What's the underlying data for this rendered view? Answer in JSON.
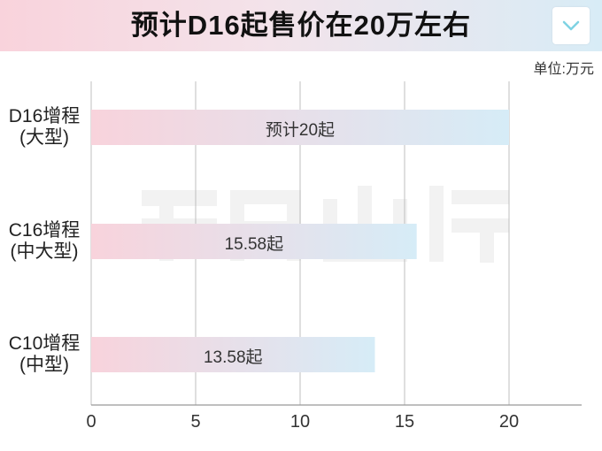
{
  "header": {
    "title": "预计D16起售价在20万左右",
    "chevron_icon": "chevron-down-icon"
  },
  "colors": {
    "bar_start": "#f8d3dc",
    "bar_end": "#d6ecf7",
    "grid": "#bfbfbf",
    "axis": "#999999"
  },
  "chart_data": {
    "type": "bar",
    "orientation": "horizontal",
    "title": "预计D16起售价在20万左右",
    "unit_label": "单位:万元",
    "categories": [
      [
        "D16增程",
        "(大型)"
      ],
      [
        "C16增程",
        "(中大型)"
      ],
      [
        "C10增程",
        "(中型)"
      ]
    ],
    "values": [
      20,
      15.58,
      13.58
    ],
    "data_labels": [
      "预计20起",
      "15.58起",
      "13.58起"
    ],
    "xlim": [
      0,
      23
    ],
    "xticks": [
      "0",
      "5",
      "10",
      "15",
      "20"
    ],
    "grid": true
  }
}
